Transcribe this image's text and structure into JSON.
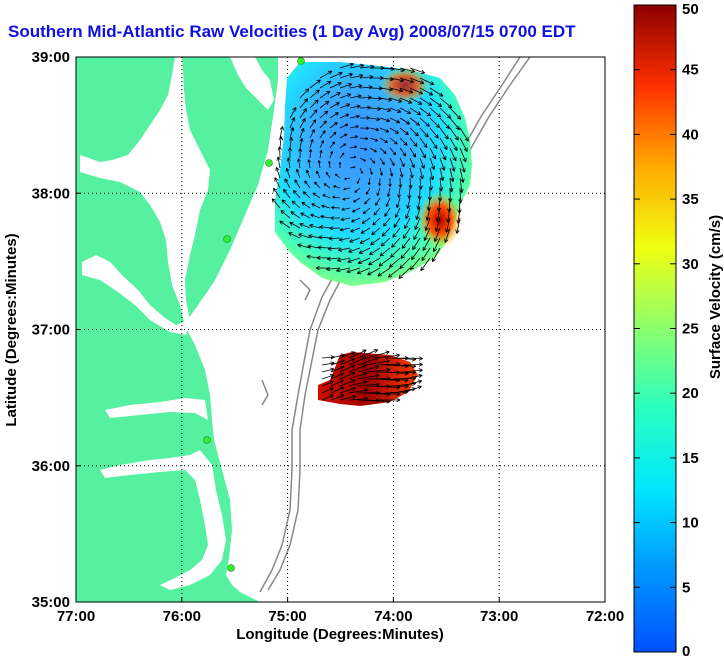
{
  "title": "Southern Mid-Atlantic Raw Velocities (1 Day Avg) 2008/07/15 0700 EDT",
  "map": {
    "xlabel": "Longitude (Degrees:Minutes)",
    "ylabel": "Latitude (Degrees:Minutes)",
    "lon_ticks": [
      "77:00",
      "76:00",
      "75:00",
      "74:00",
      "73:00",
      "72:00"
    ],
    "lat_ticks": [
      "35:00",
      "36:00",
      "37:00",
      "38:00",
      "39:00"
    ],
    "lon_range": [
      -77,
      -72
    ],
    "lat_range": [
      35,
      39
    ],
    "grid": "dotted",
    "land_color": "#55f0a0",
    "isobath_color": "#888888",
    "station_color": "#33ee33"
  },
  "colorbar": {
    "label": "Surface Velocity (cm/s)",
    "ticks": [
      "0",
      "5",
      "10",
      "15",
      "20",
      "25",
      "30",
      "35",
      "40",
      "45",
      "50"
    ],
    "range": [
      0,
      50
    ],
    "colormap": "jet"
  }
}
